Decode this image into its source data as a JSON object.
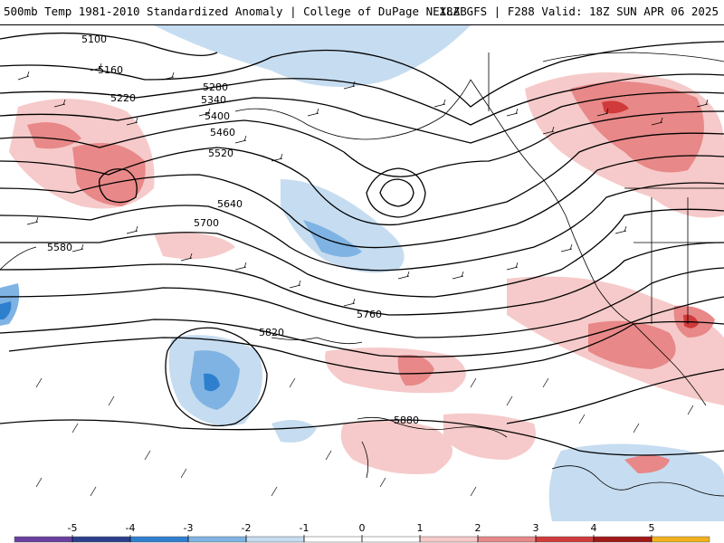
{
  "header": {
    "left": "500mb Temp 1981-2010 Standardized Anomaly | College of DuPage NEXLAB",
    "right": "18Z GFS | F288 Valid: 18Z SUN APR 06 2025"
  },
  "contour_labels": [
    "5100",
    "5160",
    "5220",
    "5280",
    "5340",
    "5400",
    "5460",
    "5520",
    "5580",
    "5640",
    "5700",
    "5760",
    "5820",
    "5880"
  ],
  "colorbar": {
    "ticks": [
      "-5",
      "-4",
      "-3",
      "-2",
      "-1",
      "0",
      "1",
      "2",
      "3",
      "4",
      "5"
    ],
    "colors": [
      "#6a3fa0",
      "#2b3f8c",
      "#2f7fcf",
      "#7fb3e3",
      "#c6dcf0",
      "#ffffff",
      "#ffffff",
      "#f6caca",
      "#e88888",
      "#d03a3a",
      "#a01818",
      "#f2b21c"
    ]
  }
}
